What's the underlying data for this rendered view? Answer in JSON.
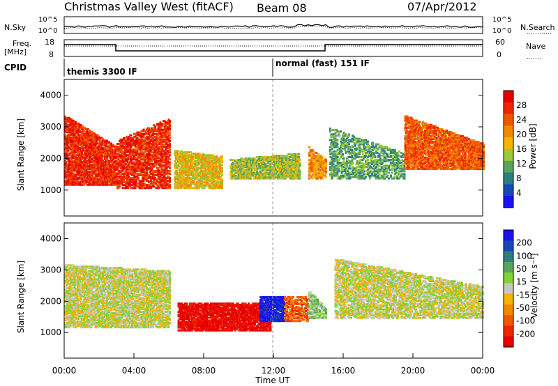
{
  "header": {
    "station": "Christmas Valley West (fitACF)",
    "beam": "Beam 08",
    "date": "07/Apr/2012"
  },
  "noise_panel": {
    "left_label": "N.Sky",
    "right_label": "N.Search",
    "left_ticks": [
      "10^5",
      "10^0"
    ],
    "right_ticks": [
      "10^5",
      "10^0"
    ]
  },
  "freq_panel": {
    "left_label_1": "Freq.",
    "left_label_2": "[MHz]",
    "right_label": "Nave",
    "left_ticks": [
      "18",
      "8"
    ],
    "right_ticks": [
      "60",
      "0"
    ]
  },
  "cpid_panel": {
    "label": "CPID",
    "programs": [
      {
        "name": "themis 3300 IF",
        "start_hour": 0
      },
      {
        "name": "normal (fast) 151 IF",
        "start_hour": 12
      }
    ]
  },
  "colors": {
    "power_scale": [
      "#1a10f0",
      "#1848b4",
      "#2a7f80",
      "#5aa35a",
      "#9cc83c",
      "#f4b400",
      "#f28a00",
      "#f05800",
      "#ef2500",
      "#e60000"
    ],
    "velocity_scale": [
      "#1a10f0",
      "#1848b4",
      "#2a7f80",
      "#5aa35a",
      "#7fd33a",
      "#c8c8c0",
      "#f4b400",
      "#f28a00",
      "#f05800",
      "#ef2500",
      "#e60000"
    ],
    "ground_scatter": "#c8c8c0"
  },
  "chart_data": [
    {
      "type": "heatmap",
      "name": "power",
      "ylabel": "Slant Range [km]",
      "xlim_hours": [
        0,
        24
      ],
      "ylim_km": [
        180,
        4500
      ],
      "y_ticks": [
        "1000",
        "2000",
        "3000",
        "4000"
      ],
      "colorbar_label": "Power [dB]",
      "colorbar_ticks": [
        "4",
        "8",
        "12",
        "16",
        "20",
        "24",
        "28"
      ],
      "regions": [
        {
          "t0": 0.0,
          "t1": 3.0,
          "r_top0": 3400,
          "r_top1": 2400,
          "r_bot": 1200,
          "level": 8,
          "density": 0.75
        },
        {
          "t0": 3.0,
          "t1": 6.0,
          "r_top0": 2600,
          "r_top1": 3300,
          "r_bot": 1100,
          "level": 8,
          "density": 0.6
        },
        {
          "t0": 6.3,
          "t1": 9.0,
          "r_top0": 2300,
          "r_top1": 2100,
          "r_bot": 1100,
          "level": 5,
          "density": 0.7
        },
        {
          "t0": 9.5,
          "t1": 13.5,
          "r_top0": 2000,
          "r_top1": 2200,
          "r_bot": 1400,
          "level": 4,
          "density": 0.75
        },
        {
          "t0": 14.0,
          "t1": 15.0,
          "r_top0": 2400,
          "r_top1": 2000,
          "r_bot": 1400,
          "level": 6,
          "density": 0.6
        },
        {
          "t0": 15.2,
          "t1": 19.5,
          "r_top0": 3000,
          "r_top1": 2200,
          "r_bot": 1400,
          "level": 3,
          "density": 0.45
        },
        {
          "t0": 19.5,
          "t1": 24.0,
          "r_top0": 3400,
          "r_top1": 2500,
          "r_bot": 1700,
          "level": 7,
          "density": 0.75
        }
      ]
    },
    {
      "type": "heatmap",
      "name": "velocity",
      "ylabel": "Slant Range [km]",
      "xlabel": "Time UT",
      "xlim_hours": [
        0,
        24
      ],
      "ylim_km": [
        180,
        4500
      ],
      "y_ticks": [
        "1000",
        "2000",
        "3000",
        "4000"
      ],
      "x_ticks": [
        "00:00",
        "04:00",
        "08:00",
        "12:00",
        "16:00",
        "20:00",
        "00:00"
      ],
      "colorbar_label": "Velocity [m s⁻¹]",
      "colorbar_ticks": [
        "200",
        "100",
        "50",
        "15",
        "-15",
        "-50",
        "-100",
        "-200"
      ],
      "regions": [
        {
          "t0": 0.0,
          "t1": 6.0,
          "r_top0": 3200,
          "r_top1": 3000,
          "r_bot": 1200,
          "level": 5,
          "density": 0.7
        },
        {
          "t0": 6.5,
          "t1": 11.8,
          "r_top0": 2000,
          "r_top1": 2000,
          "r_bot": 1100,
          "level": 10,
          "density": 0.75
        },
        {
          "t0": 11.2,
          "t1": 12.6,
          "r_top0": 2200,
          "r_top1": 2200,
          "r_bot": 1400,
          "level": 0,
          "density": 0.8
        },
        {
          "t0": 12.6,
          "t1": 14.0,
          "r_top0": 2200,
          "r_top1": 2200,
          "r_bot": 1400,
          "level": 8,
          "density": 0.55
        },
        {
          "t0": 14.0,
          "t1": 15.0,
          "r_top0": 2400,
          "r_top1": 1800,
          "r_bot": 1500,
          "level": 4,
          "density": 0.6
        },
        {
          "t0": 15.5,
          "t1": 24.0,
          "r_top0": 3400,
          "r_top1": 2500,
          "r_bot": 1500,
          "level": 5,
          "density": 0.6
        }
      ]
    }
  ]
}
